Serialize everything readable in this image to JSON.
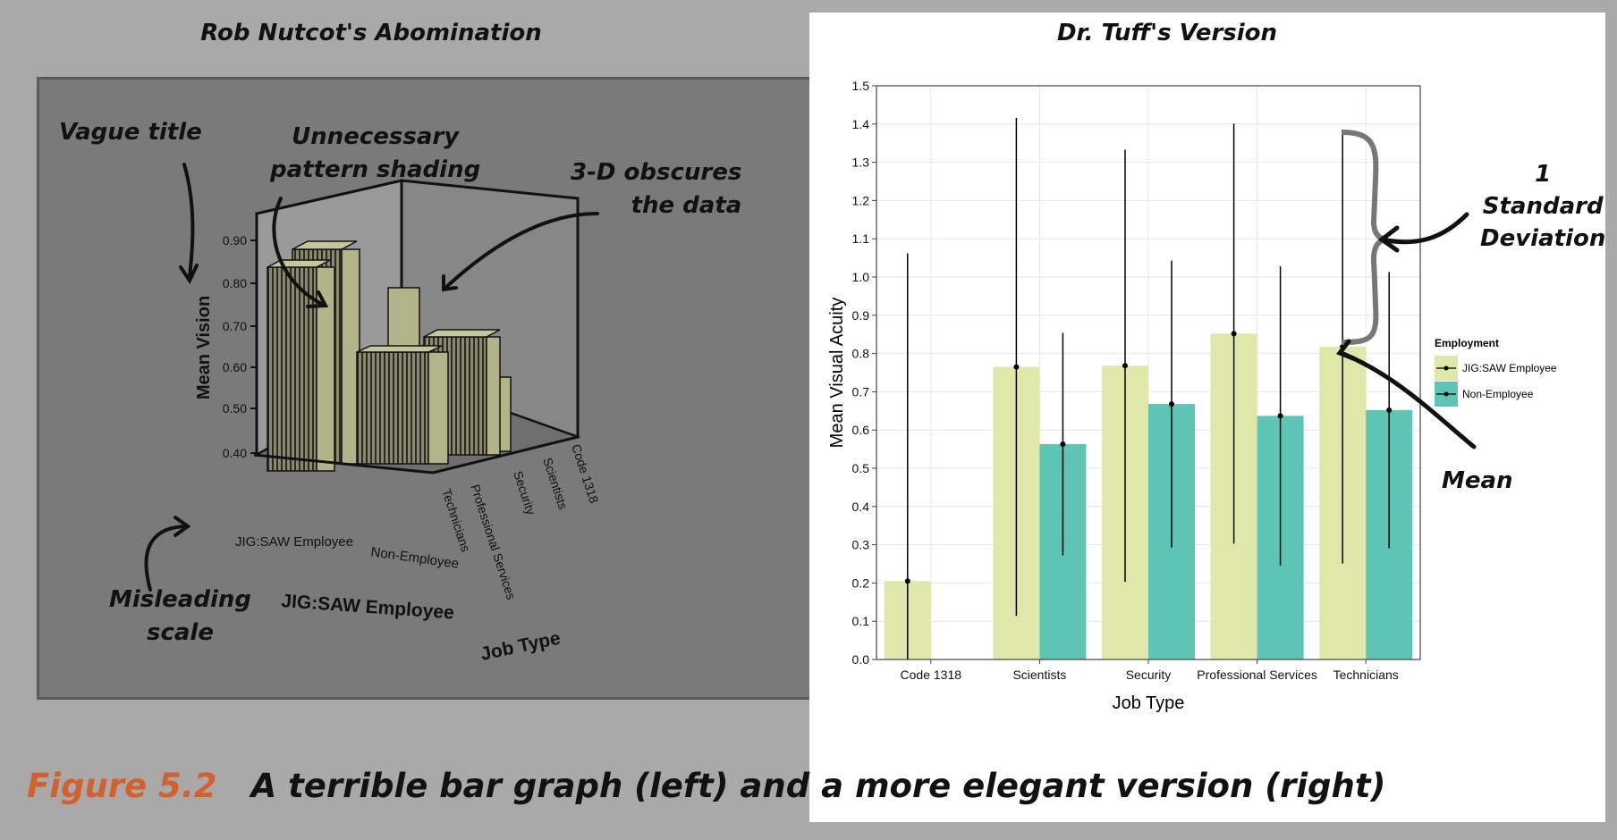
{
  "left": {
    "title": "Rob Nutcot's Abomination",
    "y_axis_label": "Mean Vision",
    "y_ticks": [
      "0.90",
      "0.80",
      "0.70",
      "0.60",
      "0.50",
      "0.40"
    ],
    "x_front_labels": [
      "JIG:SAW Employee",
      "Non-Employee"
    ],
    "x_axis_title": "JIG:SAW Employee",
    "depth_labels": [
      "Technicians",
      "Professional Services",
      "Security",
      "Scientists",
      "Code 1318"
    ],
    "depth_axis_title": "Job Type",
    "annotations": {
      "vague_title": "Vague title",
      "pattern_shading_1": "Unnecessary",
      "pattern_shading_2": "pattern shading",
      "obscures_1": "3-D obscures",
      "obscures_2": "the data",
      "misleading_1": "Misleading",
      "misleading_2": "scale"
    }
  },
  "right": {
    "title": "Dr. Tuff's Version",
    "annotations": {
      "sd_1": "1",
      "sd_2": "Standard",
      "sd_3": "Deviation",
      "mean": "Mean"
    }
  },
  "caption": {
    "figure_label": "Figure 5.2",
    "text": "A terrible bar graph (left) and a more elegant version (right)"
  },
  "chart_data": {
    "type": "bar",
    "xlabel": "Job Type",
    "ylabel": "Mean Visual Acuity",
    "ylim": [
      0,
      1.5
    ],
    "y_ticks": [
      0.0,
      0.1,
      0.2,
      0.3,
      0.4,
      0.5,
      0.6,
      0.7,
      0.8,
      0.9,
      1.0,
      1.1,
      1.2,
      1.3,
      1.4,
      1.5
    ],
    "categories": [
      "Code 1318",
      "Scientists",
      "Security",
      "Professional Services",
      "Technicians"
    ],
    "legend_title": "Employment",
    "legend_position": "right",
    "grid": true,
    "series": [
      {
        "name": "JIG:SAW Employee",
        "color": "#dfe8a8",
        "values": [
          0.205,
          0.765,
          0.768,
          0.852,
          0.818
        ],
        "sd": [
          0.857,
          0.651,
          0.565,
          0.549,
          0.567
        ]
      },
      {
        "name": "Non-Employee",
        "color": "#5ec4b3",
        "values": [
          null,
          0.563,
          0.668,
          0.637,
          0.652
        ],
        "sd": [
          null,
          0.291,
          0.375,
          0.391,
          0.361
        ]
      }
    ]
  }
}
